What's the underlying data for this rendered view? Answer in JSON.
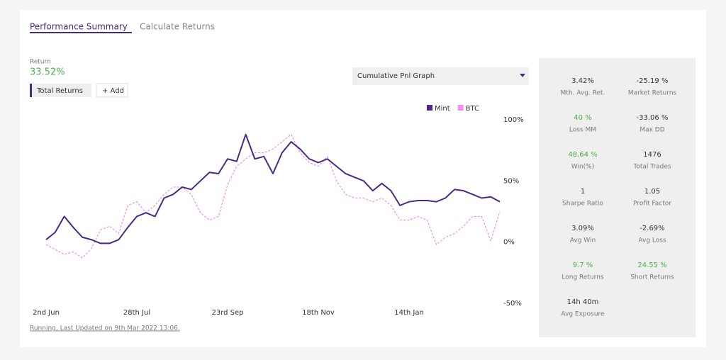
{
  "tabs": [
    "Performance Summary",
    "Calculate Returns"
  ],
  "return_label": "Return",
  "return_value": "33.52%",
  "buttons": [
    "Total Returns",
    "+ Add"
  ],
  "dropdown": "Cumulative Pnl Graph",
  "footer": "Running, Last Updated on 9th Mar 2022 13:06.",
  "stats": [
    {
      "value": "3.42%",
      "label": "Mth. Avg. Ret.",
      "color": "#333333"
    },
    {
      "value": "-25.19 %",
      "label": "Market Returns",
      "color": "#333333"
    },
    {
      "value": "40 %",
      "label": "Loss MM",
      "color": "#4caf50"
    },
    {
      "value": "-33.06 %",
      "label": "Max DD",
      "color": "#333333"
    },
    {
      "value": "48.64 %",
      "label": "Win(%)",
      "color": "#4caf50"
    },
    {
      "value": "1476",
      "label": "Total Trades",
      "color": "#333333"
    },
    {
      "value": "1",
      "label": "Sharpe Ratio",
      "color": "#333333"
    },
    {
      "value": "1.05",
      "label": "Profit Factor",
      "color": "#333333"
    },
    {
      "value": "3.09%",
      "label": "Avg Win",
      "color": "#333333"
    },
    {
      "value": "-2.69%",
      "label": "Avg Loss",
      "color": "#333333"
    },
    {
      "value": "9.7 %",
      "label": "Long Returns",
      "color": "#4caf50"
    },
    {
      "value": "24.55 %",
      "label": "Short Returns",
      "color": "#4caf50"
    },
    {
      "value": "14h 40m",
      "label": "Avg Exposure",
      "color": "#333333"
    }
  ],
  "chart_data": {
    "type": "line",
    "categories": [
      "2nd Jun",
      null,
      null,
      null,
      null,
      null,
      null,
      null,
      null,
      null,
      "28th Jul",
      null,
      null,
      null,
      null,
      null,
      null,
      null,
      null,
      null,
      "23rd Sep",
      null,
      null,
      null,
      null,
      null,
      null,
      null,
      null,
      null,
      "18th Nov",
      null,
      null,
      null,
      null,
      null,
      null,
      null,
      null,
      null,
      "14th Jan",
      null,
      null,
      null,
      null,
      null,
      null,
      null,
      null,
      null,
      null
    ],
    "series": [
      {
        "name": "Mint",
        "color": "#4a2a82",
        "dashed": false,
        "values": [
          2,
          8,
          21,
          12,
          4,
          2,
          -1,
          -1,
          2,
          12,
          21,
          24,
          21,
          36,
          39,
          45,
          43,
          50,
          57,
          56,
          68,
          66,
          88,
          68,
          70,
          56,
          73,
          82,
          76,
          68,
          65,
          68,
          62,
          56,
          53,
          50,
          42,
          48,
          42,
          30,
          33,
          34,
          34,
          33,
          36,
          43,
          42,
          39,
          36,
          37,
          33
        ]
      },
      {
        "name": "BTC",
        "color": "#f08ef0",
        "dashed": true,
        "values": [
          -2,
          -6,
          -10,
          -8,
          -13,
          -5,
          10,
          13,
          7,
          30,
          33,
          24,
          30,
          39,
          45,
          45,
          39,
          24,
          18,
          21,
          47,
          62,
          68,
          73,
          73,
          76,
          82,
          88,
          73,
          65,
          62,
          70,
          50,
          39,
          36,
          36,
          33,
          36,
          30,
          18,
          18,
          21,
          18,
          -2,
          4,
          7,
          13,
          21,
          21,
          1,
          25
        ]
      }
    ],
    "ylim": [
      -50,
      100
    ],
    "yticks": [
      {
        "value": 100,
        "label": "100%"
      },
      {
        "value": 50,
        "label": "50%"
      },
      {
        "value": 0,
        "label": "0%"
      },
      {
        "value": -50,
        "label": "-50%"
      }
    ],
    "legend": "top-right"
  }
}
